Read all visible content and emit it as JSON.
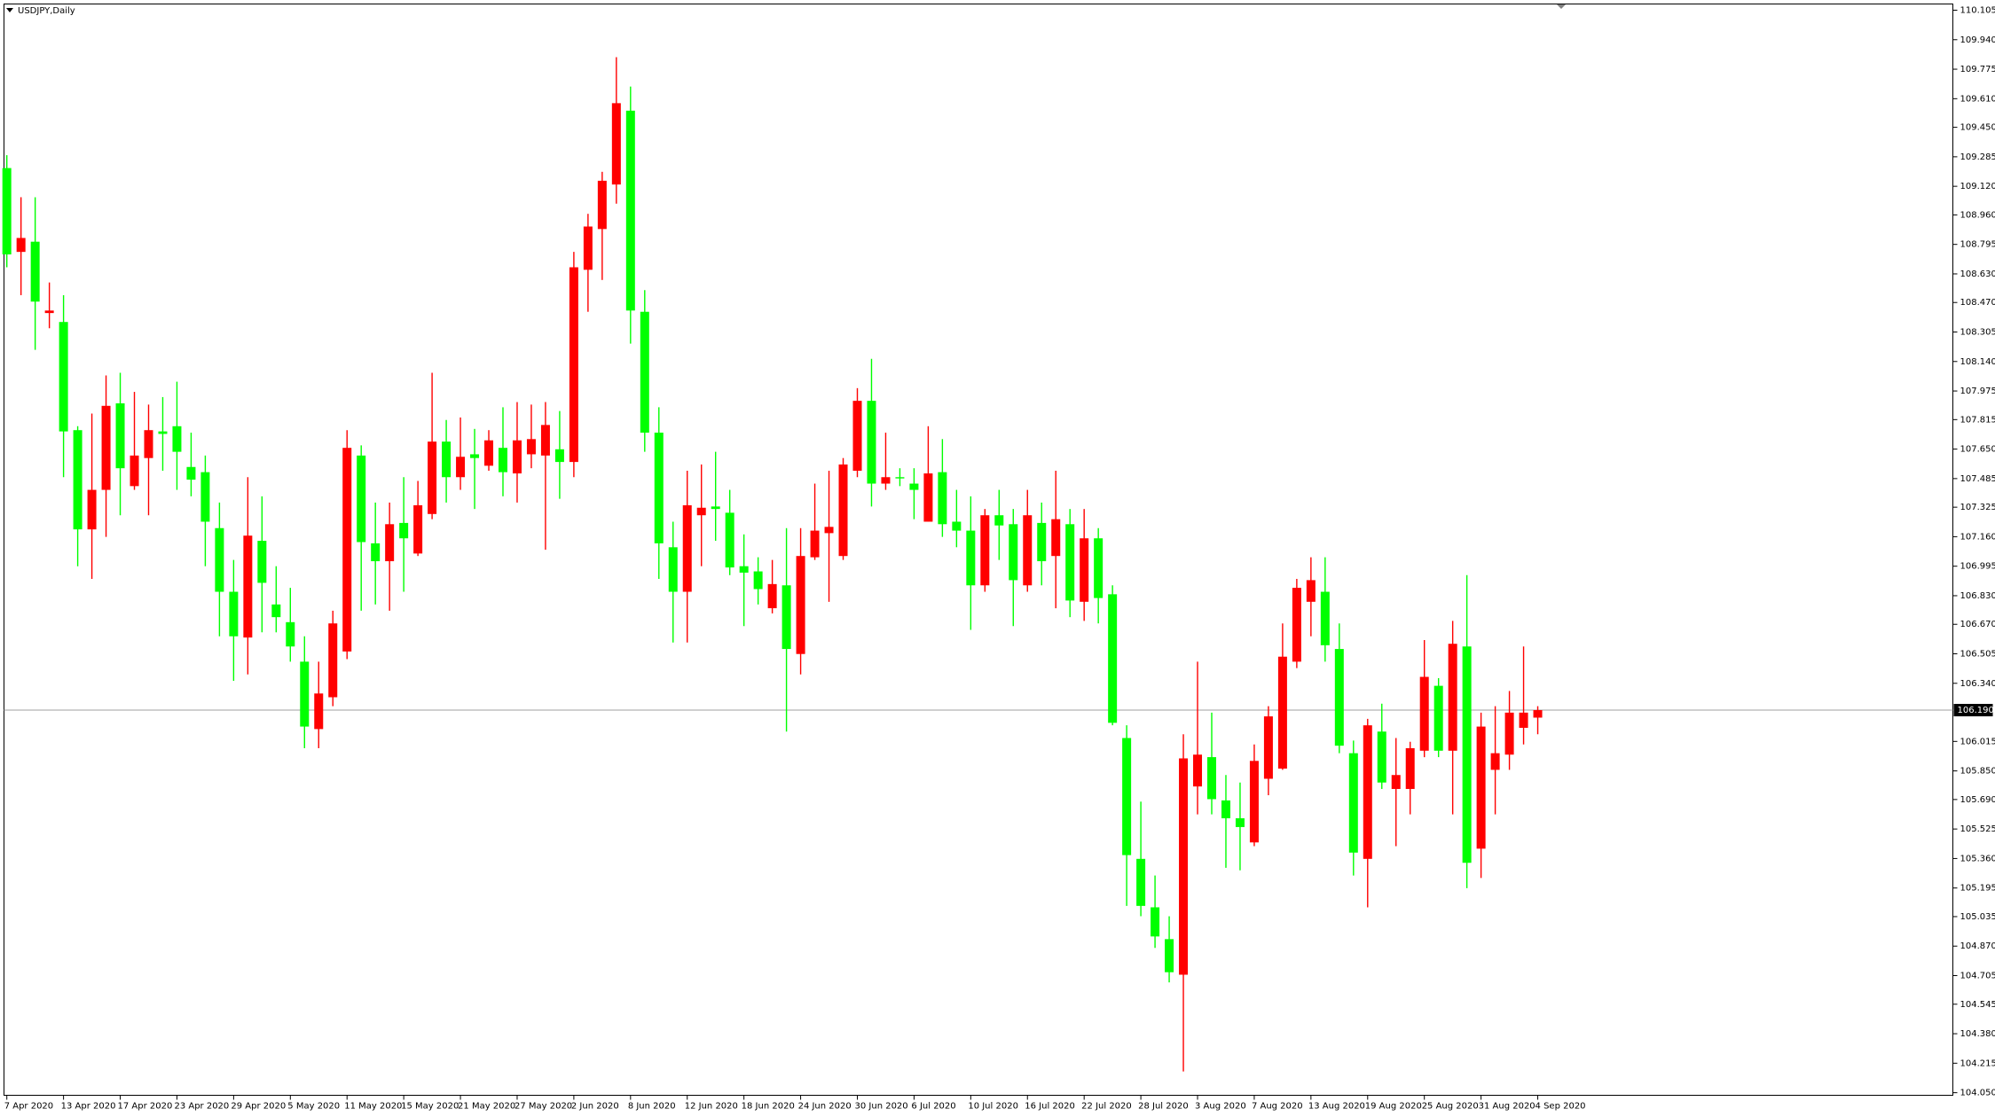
{
  "chart_data": {
    "type": "candlestick",
    "title": "USDJPY,Daily",
    "categories": [
      "7 Apr 2020",
      null,
      null,
      null,
      "13 Apr 2020",
      null,
      null,
      null,
      "17 Apr 2020",
      null,
      null,
      null,
      "23 Apr 2020",
      null,
      null,
      null,
      "29 Apr 2020",
      null,
      null,
      null,
      "5 May 2020",
      null,
      null,
      null,
      "11 May 2020",
      null,
      null,
      null,
      "15 May 2020",
      null,
      null,
      null,
      "21 May 2020",
      null,
      null,
      null,
      "27 May 2020",
      null,
      null,
      null,
      "2 Jun 2020",
      null,
      null,
      null,
      "8 Jun 2020",
      null,
      null,
      null,
      "12 Jun 2020",
      null,
      null,
      null,
      "18 Jun 2020",
      null,
      null,
      null,
      "24 Jun 2020",
      null,
      null,
      null,
      "30 Jun 2020",
      null,
      null,
      null,
      "6 Jul 2020",
      null,
      null,
      null,
      "10 Jul 2020",
      null,
      null,
      null,
      "16 Jul 2020",
      null,
      null,
      null,
      "22 Jul 2020",
      null,
      null,
      null,
      "28 Jul 2020",
      null,
      null,
      null,
      "3 Aug 2020",
      null,
      null,
      null,
      "7 Aug 2020",
      null,
      null,
      null,
      "13 Aug 2020",
      null,
      null,
      null,
      "19 Aug 2020",
      null,
      null,
      null,
      "25 Aug 2020",
      null,
      null,
      null,
      "31 Aug 2020",
      null,
      null,
      null,
      "4 Sep 2020"
    ],
    "open": [
      109.222,
      108.753,
      108.81,
      108.411,
      108.361,
      107.756,
      107.201,
      107.422,
      107.906,
      107.443,
      107.6,
      107.749,
      107.778,
      107.55,
      107.521,
      107.208,
      106.852,
      106.596,
      107.137,
      106.781,
      106.682,
      106.461,
      106.084,
      106.262,
      106.518,
      107.614,
      107.123,
      107.023,
      107.237,
      107.066,
      107.287,
      107.692,
      107.493,
      107.621,
      107.557,
      107.657,
      107.514,
      107.621,
      107.614,
      107.649,
      107.578,
      108.653,
      108.881,
      109.13,
      109.543,
      108.418,
      107.742,
      107.101,
      106.852,
      107.28,
      107.329,
      107.294,
      106.995,
      106.966,
      106.76,
      106.888,
      106.504,
      107.045,
      107.18,
      107.052,
      107.529,
      107.92,
      107.457,
      107.493,
      107.457,
      107.244,
      107.521,
      107.244,
      107.194,
      106.888,
      107.28,
      107.23,
      106.888,
      107.237,
      107.052,
      107.23,
      106.796,
      107.151,
      106.838,
      106.034,
      105.358,
      105.087,
      104.909,
      104.71,
      105.763,
      105.927,
      105.685,
      105.585,
      105.45,
      105.806,
      105.863,
      106.461,
      106.796,
      106.852,
      106.532,
      105.949,
      105.358,
      106.07,
      105.749,
      105.749,
      105.963,
      106.326,
      105.963,
      106.546,
      105.415,
      105.856,
      105.941,
      106.091,
      106.148
    ],
    "high": [
      109.294,
      109.059,
      109.059,
      108.582,
      108.511,
      107.778,
      107.849,
      108.062,
      108.077,
      107.97,
      107.899,
      107.941,
      108.027,
      107.742,
      107.614,
      107.351,
      107.03,
      107.493,
      107.386,
      106.995,
      106.874,
      106.603,
      106.461,
      106.746,
      107.756,
      107.671,
      107.351,
      107.351,
      107.493,
      107.472,
      108.077,
      107.813,
      107.827,
      107.763,
      107.756,
      107.884,
      107.913,
      107.899,
      107.913,
      107.863,
      108.753,
      108.966,
      109.201,
      109.842,
      109.678,
      108.539,
      107.884,
      107.244,
      107.529,
      107.564,
      107.635,
      107.422,
      107.173,
      107.045,
      107.03,
      107.208,
      107.208,
      107.457,
      107.529,
      107.6,
      107.991,
      108.155,
      107.742,
      107.543,
      107.543,
      107.778,
      107.706,
      107.422,
      107.386,
      107.315,
      107.422,
      107.315,
      107.422,
      107.351,
      107.529,
      107.315,
      107.315,
      107.208,
      106.888,
      106.105,
      105.678,
      105.265,
      105.037,
      106.055,
      106.461,
      106.176,
      105.827,
      105.785,
      105.998,
      106.212,
      106.675,
      106.924,
      107.045,
      107.045,
      106.675,
      106.02,
      106.141,
      106.226,
      106.034,
      106.013,
      106.582,
      106.369,
      106.689,
      106.945,
      106.176,
      106.212,
      106.297,
      106.546,
      106.212
    ],
    "low": [
      108.667,
      108.511,
      108.205,
      108.326,
      107.493,
      106.995,
      106.924,
      107.159,
      107.28,
      107.422,
      107.28,
      107.529,
      107.422,
      107.386,
      106.995,
      106.603,
      106.354,
      106.39,
      106.625,
      106.625,
      106.461,
      105.977,
      105.977,
      106.212,
      106.475,
      106.746,
      106.781,
      106.746,
      106.852,
      107.052,
      107.258,
      107.351,
      107.422,
      107.315,
      107.529,
      107.386,
      107.351,
      107.543,
      107.087,
      107.372,
      107.493,
      108.418,
      108.596,
      109.023,
      108.24,
      107.635,
      106.924,
      106.568,
      106.568,
      106.995,
      107.137,
      106.945,
      106.66,
      106.781,
      106.731,
      106.07,
      106.39,
      107.03,
      106.796,
      107.03,
      107.493,
      107.329,
      107.422,
      107.443,
      107.258,
      107.244,
      107.159,
      107.101,
      106.639,
      106.852,
      107.03,
      106.66,
      106.852,
      106.888,
      106.76,
      106.71,
      106.689,
      106.675,
      106.105,
      105.095,
      105.037,
      104.86,
      104.667,
      104.169,
      105.607,
      105.607,
      105.308,
      105.294,
      105.429,
      105.714,
      105.856,
      106.425,
      106.603,
      106.461,
      105.949,
      105.265,
      105.087,
      105.749,
      105.429,
      105.607,
      105.927,
      105.927,
      105.607,
      105.194,
      105.251,
      105.607,
      105.856,
      105.998,
      106.055
    ],
    "close": [
      108.739,
      108.831,
      108.475,
      108.425,
      107.749,
      107.201,
      107.422,
      107.892,
      107.543,
      107.614,
      107.756,
      107.735,
      107.635,
      107.479,
      107.244,
      106.852,
      106.603,
      107.166,
      106.902,
      106.71,
      106.546,
      106.098,
      106.283,
      106.675,
      107.657,
      107.13,
      107.023,
      107.23,
      107.151,
      107.336,
      107.692,
      107.493,
      107.607,
      107.6,
      107.699,
      107.521,
      107.699,
      107.706,
      107.785,
      107.578,
      108.667,
      108.895,
      109.151,
      109.585,
      108.425,
      107.742,
      107.123,
      106.852,
      107.336,
      107.322,
      107.315,
      106.988,
      106.959,
      106.867,
      106.895,
      106.532,
      107.052,
      107.194,
      107.215,
      107.564,
      107.92,
      107.457,
      107.493,
      107.486,
      107.422,
      107.514,
      107.23,
      107.194,
      106.888,
      107.28,
      107.223,
      106.917,
      107.28,
      107.023,
      107.258,
      106.803,
      107.151,
      106.817,
      106.119,
      105.379,
      105.095,
      104.924,
      104.724,
      105.92,
      105.941,
      105.692,
      105.585,
      105.536,
      105.906,
      106.155,
      106.489,
      106.874,
      106.917,
      106.553,
      105.991,
      105.393,
      106.105,
      105.785,
      105.827,
      105.977,
      106.376,
      105.963,
      106.561,
      105.336,
      106.098,
      105.949,
      106.176,
      106.176,
      106.19
    ],
    "up_color": "#ff0000",
    "down_color": "#00ff00",
    "ylim": [
      104.05,
      110.105
    ],
    "yticks": [
      110.105,
      {
        "value": 109.94,
        "label": "109.940"
      },
      109.775,
      {
        "value": 109.61,
        "label": "109.610"
      },
      {
        "value": 109.45,
        "label": "109.450"
      },
      109.285,
      {
        "value": 109.12,
        "label": "109.120"
      },
      {
        "value": 108.96,
        "label": "108.960"
      },
      108.795,
      {
        "value": 108.63,
        "label": "108.630"
      },
      {
        "value": 108.47,
        "label": "108.470"
      },
      108.305,
      {
        "value": 108.14,
        "label": "108.140"
      },
      107.975,
      107.815,
      {
        "value": 107.65,
        "label": "107.650"
      },
      107.485,
      107.325,
      {
        "value": 107.16,
        "label": "107.160"
      },
      106.995,
      {
        "value": 106.83,
        "label": "106.830"
      },
      {
        "value": 106.67,
        "label": "106.670"
      },
      106.505,
      {
        "value": 106.34,
        "label": "106.340"
      },
      106.015,
      {
        "value": 105.85,
        "label": "105.850"
      },
      {
        "value": 105.69,
        "label": "105.690"
      },
      105.525,
      {
        "value": 105.36,
        "label": "105.360"
      },
      105.195,
      105.035,
      {
        "value": 104.87,
        "label": "104.870"
      },
      104.705,
      104.545,
      {
        "value": 104.38,
        "label": "104.380"
      },
      104.215,
      {
        "value": 104.05,
        "label": "104.050"
      }
    ],
    "current_price": {
      "value": 106.19,
      "label": "106.190"
    },
    "grid": false
  }
}
